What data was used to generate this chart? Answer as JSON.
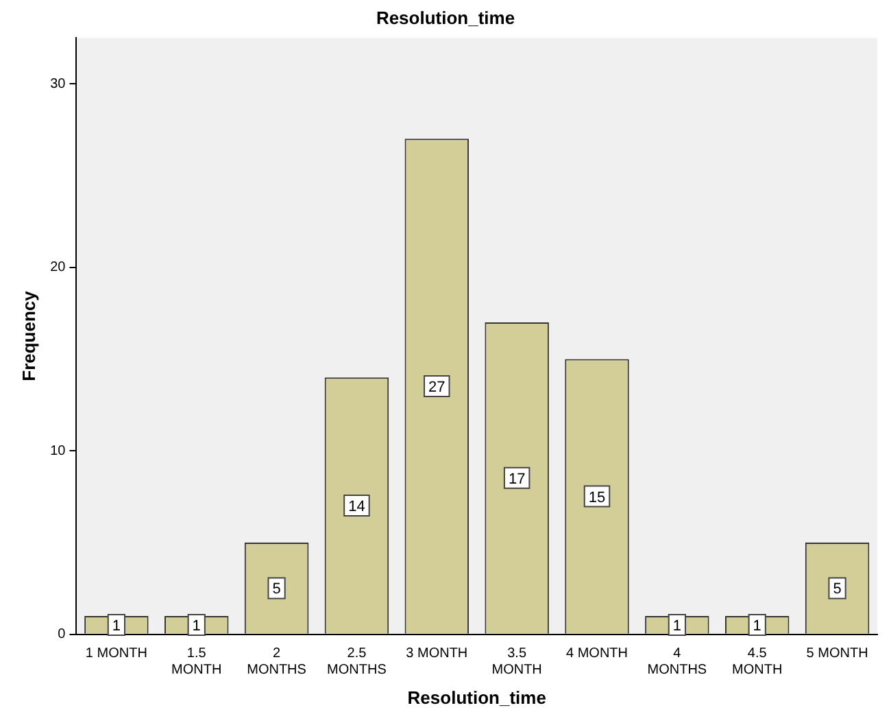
{
  "chart_data": {
    "type": "bar",
    "title": "Resolution_time",
    "xlabel": "Resolution_time",
    "ylabel": "Frequency",
    "categories": [
      "1 MONTH",
      "1.5 MONTH",
      "2 MONTHS",
      "2.5 MONTHS",
      "3 MONTH",
      "3.5 MONTH",
      "4 MONTH",
      "4 MONTHS",
      "4.5 MONTH",
      "5 MONTH"
    ],
    "values": [
      1,
      1,
      5,
      14,
      27,
      17,
      15,
      1,
      1,
      5
    ],
    "color": "#d3ce97",
    "ylim": [
      0,
      32.5
    ],
    "yticks": [
      0,
      10,
      20,
      30
    ],
    "grid": false,
    "legend": false,
    "data_labels": true
  }
}
